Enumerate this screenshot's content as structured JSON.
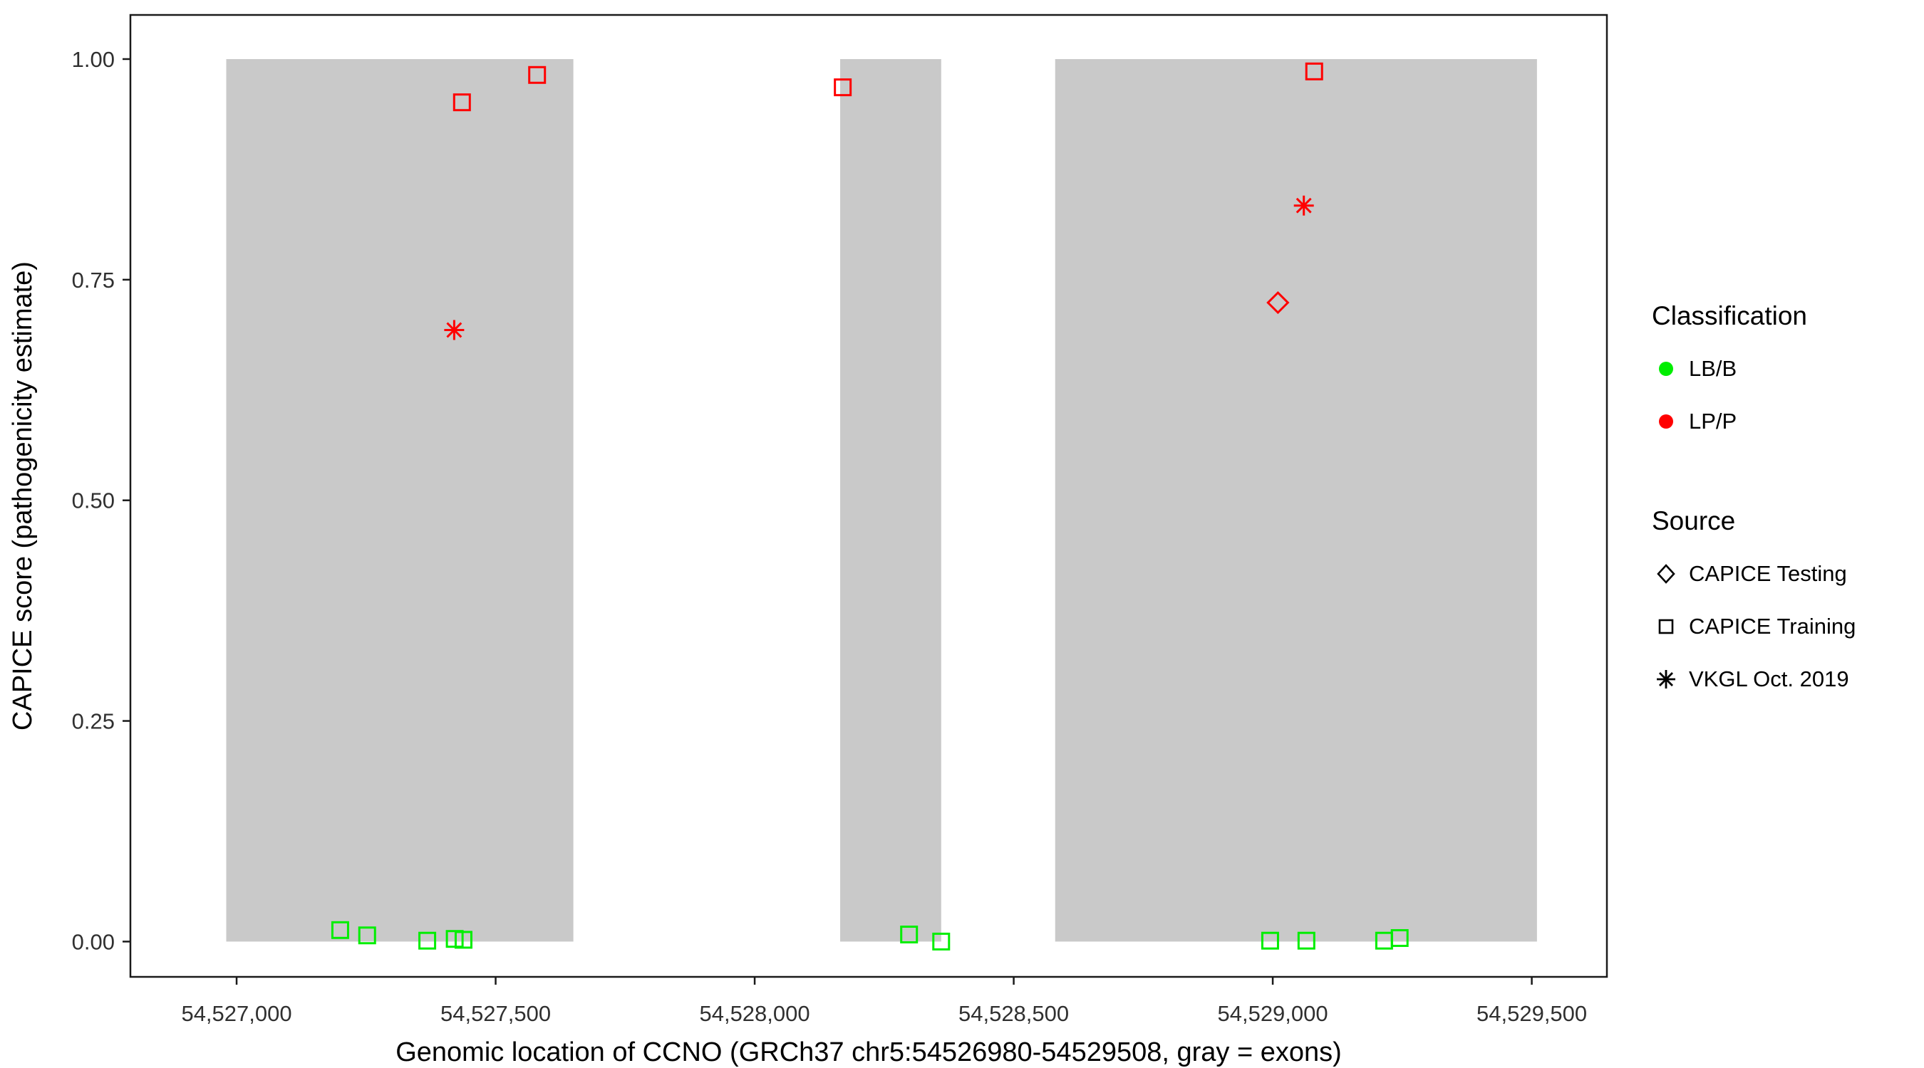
{
  "chart_data": {
    "type": "scatter",
    "title": "",
    "xlabel": "Genomic location of CCNO (GRCh37 chr5:54526980-54529508, gray = exons)",
    "ylabel": "CAPICE score (pathogenicity estimate)",
    "xlim": [
      54526795,
      54529645
    ],
    "ylim": [
      -0.04,
      1.05
    ],
    "x_ticks": [
      54527000,
      54527500,
      54528000,
      54528500,
      54529000,
      54529500
    ],
    "x_tick_labels": [
      "54,527,000",
      "54,527,500",
      "54,528,000",
      "54,528,500",
      "54,529,000",
      "54,529,500"
    ],
    "y_ticks": [
      0.0,
      0.25,
      0.5,
      0.75,
      1.0
    ],
    "y_tick_labels": [
      "0.00",
      "0.25",
      "0.50",
      "0.75",
      "1.00"
    ],
    "grid": "off",
    "legend_position": "right",
    "colors": {
      "lbb": "#00EE00",
      "lpp": "#FF0000",
      "exon": "#C9C9C9",
      "panel_border": "#1A1A1A",
      "tick_text": "#303030",
      "axis_title": "#000000"
    },
    "exons": [
      {
        "start": 54526980,
        "end": 54527650
      },
      {
        "start": 54528165,
        "end": 54528360
      },
      {
        "start": 54528580,
        "end": 54529510
      }
    ],
    "series": [
      {
        "name": "LP/P - CAPICE Training",
        "classification": "LP/P",
        "source": "CAPICE Training",
        "shape": "open-square",
        "color": "#FF0000",
        "points": [
          [
            54527435,
            0.951
          ],
          [
            54527580,
            0.982
          ],
          [
            54528170,
            0.968
          ],
          [
            54529080,
            0.986
          ]
        ]
      },
      {
        "name": "LP/P - VKGL Oct. 2019",
        "classification": "LP/P",
        "source": "VKGL Oct. 2019",
        "shape": "asterisk",
        "color": "#FF0000",
        "points": [
          [
            54527420,
            0.693
          ],
          [
            54529060,
            0.834
          ]
        ]
      },
      {
        "name": "LP/P - CAPICE Testing",
        "classification": "LP/P",
        "source": "CAPICE Testing",
        "shape": "open-diamond",
        "color": "#FF0000",
        "points": [
          [
            54529010,
            0.724
          ]
        ]
      },
      {
        "name": "LB/B - CAPICE Training",
        "classification": "LB/B",
        "source": "CAPICE Training",
        "shape": "open-square",
        "color": "#00EE00",
        "points": [
          [
            54527200,
            0.013
          ],
          [
            54527252,
            0.007
          ],
          [
            54527368,
            0.001
          ],
          [
            54527421,
            0.003
          ],
          [
            54527438,
            0.002
          ],
          [
            54528298,
            0.008
          ],
          [
            54528360,
            0.0
          ],
          [
            54528995,
            0.001
          ],
          [
            54529065,
            0.001
          ],
          [
            54529215,
            0.001
          ],
          [
            54529245,
            0.004
          ]
        ]
      }
    ]
  },
  "legend": {
    "classification": {
      "title": "Classification",
      "items": [
        {
          "label": "LB/B",
          "color": "#00EE00"
        },
        {
          "label": "LP/P",
          "color": "#FF0000"
        }
      ]
    },
    "source": {
      "title": "Source",
      "items": [
        {
          "label": "CAPICE Testing",
          "shape": "open-diamond"
        },
        {
          "label": "CAPICE Training",
          "shape": "open-square"
        },
        {
          "label": "VKGL Oct. 2019",
          "shape": "asterisk"
        }
      ]
    }
  }
}
